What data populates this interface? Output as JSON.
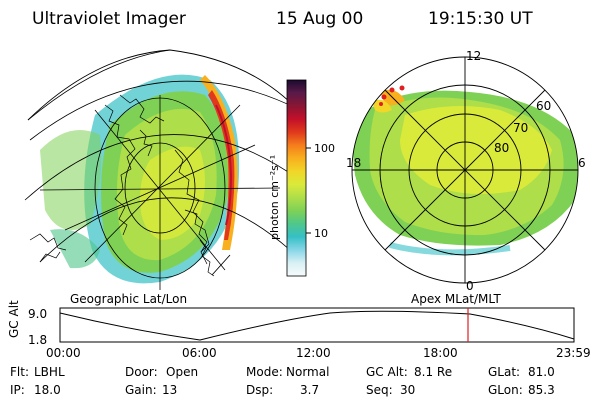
{
  "header": {
    "instrument": "Ultraviolet Imager",
    "date": "15 Aug 00",
    "time": "19:15:30 UT"
  },
  "left_panel": {
    "caption": "Geographic Lat/Lon"
  },
  "right_panel": {
    "caption": "Apex MLat/MLT",
    "mlt_labels": {
      "top": "12",
      "left": "18",
      "right": "6",
      "bottom": "0"
    },
    "lat_labels": [
      "60",
      "70",
      "80"
    ]
  },
  "colorbar": {
    "unit_label": "photon cm⁻²s⁻¹",
    "ticks": [
      "100",
      "10"
    ],
    "colors": [
      "#1b0a2e",
      "#5a1a48",
      "#8a1533",
      "#c3102a",
      "#e03a1c",
      "#f57e1c",
      "#f8b01e",
      "#f2d628",
      "#d9ea3a",
      "#aede4a",
      "#7fd156",
      "#4fc78a",
      "#36c0c6",
      "#87d6e6",
      "#d9f0f4",
      "#f7fbfc"
    ]
  },
  "altitude_plot": {
    "ylabel": "GC Alt",
    "yticks": [
      "9.0",
      "1.8"
    ],
    "xticks": [
      "00:00",
      "06:00",
      "12:00",
      "18:00",
      "23:59"
    ],
    "marker_color": "#e02020"
  },
  "status": {
    "row1": [
      {
        "label": "Flt:",
        "value": "LBHL"
      },
      {
        "label": "Door:",
        "value": "Open"
      },
      {
        "label": "Mode:",
        "value": "Normal"
      },
      {
        "label": "GC Alt:",
        "value": "8.1 Re"
      },
      {
        "label": "GLat:",
        "value": "81.0"
      }
    ],
    "row2": [
      {
        "label": "IP:",
        "value": "18.0"
      },
      {
        "label": "Gain:",
        "value": "13"
      },
      {
        "label": "Dsp:",
        "value": "3.7"
      },
      {
        "label": "Seq:",
        "value": "30"
      },
      {
        "label": "GLon:",
        "value": "85.3"
      }
    ]
  }
}
